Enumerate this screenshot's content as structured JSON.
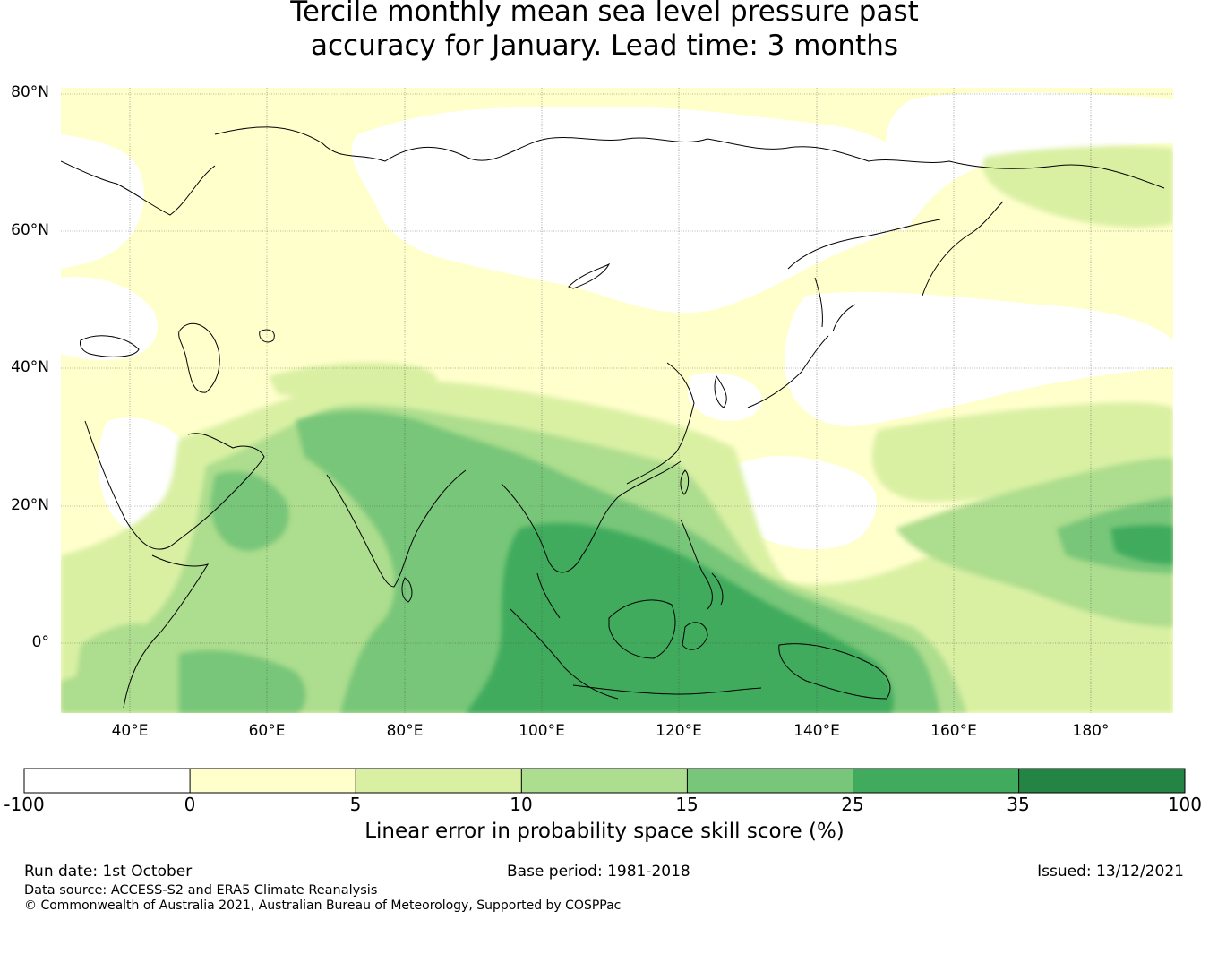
{
  "title_line1": "Tercile monthly mean sea level pressure past",
  "title_line2": "accuracy for January. Lead time: 3 months",
  "map": {
    "lat_labels": [
      "80°N",
      "60°N",
      "40°N",
      "20°N",
      "0°"
    ],
    "lon_labels": [
      "40°E",
      "60°E",
      "80°E",
      "100°E",
      "120°E",
      "140°E",
      "160°E",
      "180°"
    ],
    "lon_range": [
      30,
      192
    ],
    "lat_range": [
      -10,
      81
    ]
  },
  "colorbar": {
    "ticks": [
      "-100",
      "0",
      "5",
      "10",
      "15",
      "25",
      "35",
      "100"
    ],
    "colors": [
      "#ffffff",
      "#ffffcc",
      "#d9f0a3",
      "#addd8e",
      "#78c679",
      "#41ab5d",
      "#238443"
    ],
    "label": "Linear error in probability space skill score (%)"
  },
  "footer": {
    "run_date": "Run date: 1st October",
    "base_period": "Base period: 1981-2018",
    "issued": "Issued: 13/12/2021",
    "data_source": "Data source: ACCESS-S2 and ERA5 Climate Reanalysis",
    "copyright": "© Commonwealth of Australia 2021, Australian Bureau of Meteorology, Supported by COSPPac"
  }
}
